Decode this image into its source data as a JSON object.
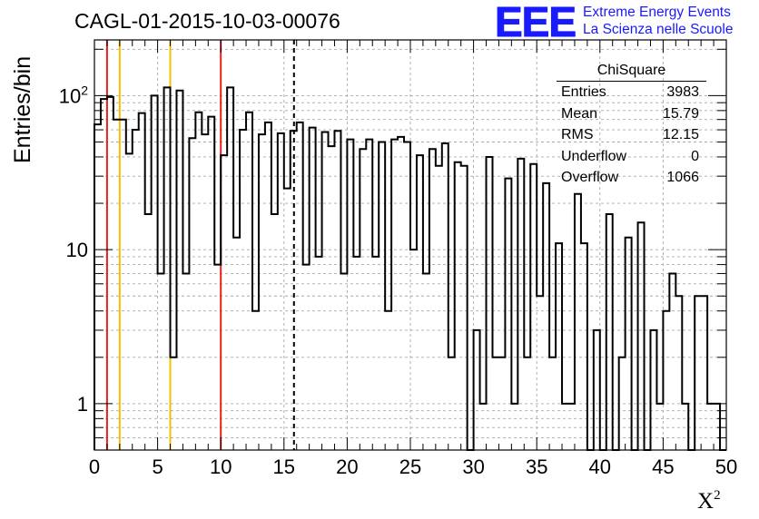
{
  "title": "CAGL-01-2015-10-03-00076",
  "logo": {
    "mark": "EEE",
    "line1": "Extreme Energy Events",
    "line2": "La Scienza nelle Scuole",
    "color": "#1a1aff"
  },
  "stats_box": {
    "title": "ChiSquare",
    "rows": [
      {
        "label": "Entries",
        "value": "3983"
      },
      {
        "label": "Mean",
        "value": "15.79"
      },
      {
        "label": "RMS",
        "value": "12.15"
      },
      {
        "label": "Underflow",
        "value": "0"
      },
      {
        "label": "Overflow",
        "value": "1066"
      }
    ]
  },
  "chart_data": {
    "type": "histogram",
    "title": "CAGL-01-2015-10-03-00076",
    "xlabel": "X",
    "xlabel_superscript": "2",
    "ylabel": "Entries/bin",
    "xlim": [
      0,
      50
    ],
    "ylim": [
      0.5,
      230
    ],
    "y_scale": "log",
    "bin_width": 0.5,
    "x_ticks": [
      "0",
      "5",
      "10",
      "15",
      "20",
      "25",
      "30",
      "35",
      "40",
      "45",
      "50"
    ],
    "y_ticks": [
      "1",
      "10",
      "10^2"
    ],
    "grid": true,
    "bin_counts": [
      65,
      95,
      98,
      70,
      70,
      42,
      60,
      77,
      17,
      100,
      7,
      113,
      2,
      108,
      7,
      53,
      78,
      56,
      73,
      8,
      41,
      113,
      12,
      60,
      78,
      4,
      56,
      67,
      17,
      57,
      25,
      59,
      67,
      8,
      62,
      9,
      58,
      47,
      59,
      7,
      52,
      9,
      45,
      52,
      9,
      50,
      4,
      52,
      54,
      50,
      10,
      41,
      7,
      45,
      35,
      49,
      2,
      37,
      35,
      0.4,
      3,
      1,
      40,
      2,
      2,
      29,
      1,
      39,
      2,
      36,
      5,
      27,
      2,
      11,
      1,
      1,
      23,
      11,
      0.4,
      3,
      0.4,
      17,
      0.4,
      2,
      12,
      0.4,
      15,
      0.4,
      3,
      1,
      4,
      7,
      5,
      1,
      0.4,
      5,
      5,
      1,
      1,
      0.4
    ],
    "vertical_lines": [
      {
        "x": 1,
        "color": "#e8211f",
        "style": "solid"
      },
      {
        "x": 2,
        "color": "#f5be00",
        "style": "solid"
      },
      {
        "x": 6,
        "color": "#f5be00",
        "style": "solid"
      },
      {
        "x": 10,
        "color": "#e8211f",
        "style": "solid"
      },
      {
        "x": 15.79,
        "color": "#000000",
        "style": "dashed"
      }
    ]
  }
}
